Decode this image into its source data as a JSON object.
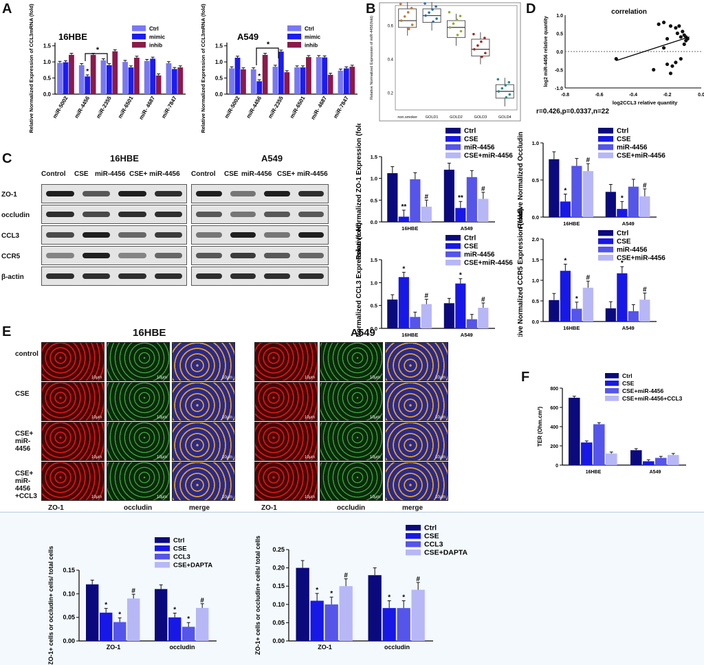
{
  "colors": {
    "ctrl": "#0a0a7d",
    "cse": "#1818e6",
    "mir": "#5555ea",
    "combo": "#b7b7f6",
    "a_ctrl": "#7878f5",
    "a_mimic": "#1c1cf0",
    "a_inhib": "#8a1a4a",
    "ctrl_light": "#7a7af4"
  },
  "panel_letters": {
    "a": "A",
    "b": "B",
    "c": "C",
    "d": "D",
    "e": "E",
    "f": "F"
  },
  "panel_a": {
    "legend": [
      "Ctrl",
      "mimic",
      "inhib"
    ],
    "categories": [
      "miR-5002",
      "miR-4456",
      "miR-2355",
      "miR-6501",
      "miR- 4687",
      "miR-7847"
    ],
    "categories_right": [
      "miR-5002",
      "miR-4456",
      "miR-2355",
      "miR-6501",
      "miR- 4687",
      "miR-7847"
    ],
    "left": {
      "title": "16HBE",
      "ylabel": "Relative Normalized Expression of CCL3mRNA (fold)",
      "yticks": [
        "0.0",
        "0.5",
        "1.0",
        "1.5"
      ],
      "star": "*"
    },
    "right": {
      "title": "A549",
      "ylabel": "Relative Normalized Expression of CCL3mRNA (fold)",
      "yticks": [
        "0.0",
        "0.5",
        "1.0",
        "1.5"
      ],
      "star": "*"
    }
  },
  "panel_b": {
    "ylabel": "Relative Normalized Expression of miR-4456(fold)",
    "categories": [
      "non.smoker",
      "GOLD1",
      "GOLD2",
      "GOLD3",
      "GOLD4"
    ],
    "yticks": [
      "0.2",
      "0.4",
      "0.6"
    ]
  },
  "panel_d": {
    "title": "correlation",
    "ylabel": "log2 miR-4456 relative quantity",
    "xlabel": "log2CCL3 relative quantity",
    "xticks": [
      "-0.8",
      "-0.6",
      "-0.4",
      "-0.2",
      "0.0"
    ],
    "yticks": [
      "1.0",
      "0.5",
      "0.0",
      "-0.5",
      "-1.0"
    ],
    "stats": "r=0.426,p=0.0337,n=22"
  },
  "panel_c": {
    "left_title": "16HBE",
    "right_title": "A549",
    "lanes": [
      "Control",
      "CSE",
      "miR-4456",
      "CSE+ miR-4456"
    ],
    "lanes_right": [
      "Control",
      "CSE",
      "miR-4456",
      "CSE+ miR-4456"
    ],
    "rows": [
      "ZO-1",
      "occludin",
      "CCL3",
      "CCR5",
      "β-actin"
    ]
  },
  "quant_legend": [
    "Ctrl",
    "CSE",
    "miR-4456",
    "CSE+miR-4456"
  ],
  "quant": {
    "zo1": {
      "ylabel": "Relative Normalized ZO-1 Expression (fold)",
      "yticks": [
        "0.0",
        "0.5",
        "1.0",
        "1.5"
      ],
      "groups": [
        "16HBE",
        "A549"
      ]
    },
    "occ": {
      "ylabel": "Relative Normalized Occludin",
      "yticks": [
        "0.0",
        "0.5",
        "1.0"
      ],
      "groups": [
        "16HBE",
        "A549"
      ]
    },
    "ccl3": {
      "ylabel": "Relative Normalized CCL3 Expression (fold)",
      "yticks": [
        "0.0",
        "0.5",
        "1.0",
        "1.5"
      ],
      "groups": [
        "16HBE",
        "A549"
      ]
    },
    "ccr5": {
      "ylabel": "Relative Normalized CCR5 Expression (fold)",
      "yticks": [
        "0.0",
        "0.5",
        "1.0",
        "1.5",
        "2.0"
      ],
      "groups": [
        "16HBE",
        "A549"
      ]
    }
  },
  "panel_e": {
    "left_title": "16HBE",
    "right_title": "A549",
    "rows": [
      "control",
      "CSE",
      "CSE+\nmiR-\n4456",
      "CSE+\nmiR-\n4456\n+CCL3"
    ],
    "cols": [
      "ZO-1",
      "occludin",
      "merge"
    ],
    "scale": "10μm"
  },
  "panel_f": {
    "legend": [
      "Ctrl",
      "CSE",
      "CSE+miR-4456",
      "CSE+miR-4456+CCL3"
    ],
    "ylabel": "TER (Ohm.cm²)",
    "yticks": [
      "0",
      "200",
      "400",
      "600",
      "800"
    ],
    "groups": [
      "16HBE",
      "A549"
    ]
  },
  "bottom_legend": [
    "Ctrl",
    "CSE",
    "CCL3",
    "CSE+DAPTA"
  ],
  "bottom_ylabel": "ZO-1+ cells or occludin+ cells/ total cells",
  "bottom_left": {
    "yticks": [
      "0.00",
      "0.05",
      "0.10",
      "0.15"
    ],
    "groups": [
      "ZO-1",
      "occludin"
    ]
  },
  "bottom_right": {
    "yticks": [
      "0.00",
      "0.05",
      "0.10",
      "0.15",
      "0.20",
      "0.25"
    ],
    "groups": [
      "ZO-1",
      "occludin"
    ]
  },
  "chart_data": [
    {
      "type": "bar",
      "name": "A-16HBE",
      "categories": [
        "miR-5002",
        "miR-4456",
        "miR-2355",
        "miR-6501",
        "miR- 4687",
        "miR-7847"
      ],
      "series": [
        {
          "name": "Ctrl",
          "values": [
            0.97,
            0.9,
            1.05,
            1.0,
            1.03,
            0.96
          ]
        },
        {
          "name": "mimic",
          "values": [
            0.99,
            0.55,
            0.9,
            0.83,
            1.1,
            0.78
          ]
        },
        {
          "name": "inhib",
          "values": [
            1.22,
            1.22,
            1.33,
            1.13,
            0.58,
            0.83
          ]
        }
      ],
      "ylim": [
        0,
        1.6
      ]
    },
    {
      "type": "bar",
      "name": "A-A549",
      "categories": [
        "miR-5002",
        "miR-4456",
        "miR-2355",
        "miR-6501",
        "miR- 4687",
        "miR-7847"
      ],
      "series": [
        {
          "name": "Ctrl",
          "values": [
            0.8,
            0.77,
            0.85,
            0.83,
            1.15,
            0.73
          ]
        },
        {
          "name": "mimic",
          "values": [
            1.13,
            0.4,
            1.32,
            0.83,
            1.14,
            0.8
          ]
        },
        {
          "name": "inhib",
          "values": [
            0.77,
            1.22,
            0.68,
            1.15,
            0.6,
            0.85
          ]
        }
      ],
      "ylim": [
        0,
        1.6
      ]
    },
    {
      "type": "bar",
      "name": "C-ZO-1",
      "categories": [
        "16HBE",
        "A549"
      ],
      "series": [
        {
          "name": "Ctrl",
          "values": [
            1.12,
            1.2
          ]
        },
        {
          "name": "CSE",
          "values": [
            0.12,
            0.32
          ]
        },
        {
          "name": "miR-4456",
          "values": [
            0.98,
            1.03
          ]
        },
        {
          "name": "CSE+miR-4456",
          "values": [
            0.35,
            0.53
          ]
        }
      ],
      "ylim": [
        0,
        1.5
      ]
    },
    {
      "type": "bar",
      "name": "C-Occludin",
      "categories": [
        "16HBE",
        "A549"
      ],
      "series": [
        {
          "name": "Ctrl",
          "values": [
            0.78,
            0.34
          ]
        },
        {
          "name": "CSE",
          "values": [
            0.21,
            0.11
          ]
        },
        {
          "name": "miR-4456",
          "values": [
            0.69,
            0.41
          ]
        },
        {
          "name": "CSE+miR-4456",
          "values": [
            0.62,
            0.28
          ]
        }
      ],
      "ylim": [
        0,
        1.0
      ]
    },
    {
      "type": "bar",
      "name": "C-CCL3",
      "categories": [
        "16HBE",
        "A549"
      ],
      "series": [
        {
          "name": "Ctrl",
          "values": [
            0.63,
            0.55
          ]
        },
        {
          "name": "CSE",
          "values": [
            1.12,
            0.98
          ]
        },
        {
          "name": "miR-4456",
          "values": [
            0.25,
            0.2
          ]
        },
        {
          "name": "CSE+miR-4456",
          "values": [
            0.53,
            0.45
          ]
        }
      ],
      "ylim": [
        0,
        1.5
      ]
    },
    {
      "type": "bar",
      "name": "C-CCR5",
      "categories": [
        "16HBE",
        "A549"
      ],
      "series": [
        {
          "name": "Ctrl",
          "values": [
            0.52,
            0.32
          ]
        },
        {
          "name": "CSE",
          "values": [
            1.23,
            1.17
          ]
        },
        {
          "name": "miR-4456",
          "values": [
            0.31,
            0.25
          ]
        },
        {
          "name": "CSE+miR-4456",
          "values": [
            0.82,
            0.53
          ]
        }
      ],
      "ylim": [
        0,
        2.0
      ]
    },
    {
      "type": "bar",
      "name": "F-TER",
      "categories": [
        "16HBE",
        "A549"
      ],
      "series": [
        {
          "name": "Ctrl",
          "values": [
            700,
            155
          ]
        },
        {
          "name": "CSE",
          "values": [
            235,
            40
          ]
        },
        {
          "name": "CSE+miR-4456",
          "values": [
            425,
            75
          ]
        },
        {
          "name": "CSE+miR-4456+CCL3",
          "values": [
            120,
            105
          ]
        }
      ],
      "ylim": [
        0,
        800
      ]
    },
    {
      "type": "bar",
      "name": "bottom-left",
      "categories": [
        "ZO-1",
        "occludin"
      ],
      "series": [
        {
          "name": "Ctrl",
          "values": [
            0.12,
            0.11
          ]
        },
        {
          "name": "CSE",
          "values": [
            0.06,
            0.05
          ]
        },
        {
          "name": "CCL3",
          "values": [
            0.04,
            0.03
          ]
        },
        {
          "name": "CSE+DAPTA",
          "values": [
            0.09,
            0.07
          ]
        }
      ],
      "ylim": [
        0,
        0.15
      ]
    },
    {
      "type": "bar",
      "name": "bottom-right",
      "categories": [
        "ZO-1",
        "occludin"
      ],
      "series": [
        {
          "name": "Ctrl",
          "values": [
            0.2,
            0.18
          ]
        },
        {
          "name": "CSE",
          "values": [
            0.11,
            0.09
          ]
        },
        {
          "name": "CCL3",
          "values": [
            0.1,
            0.09
          ]
        },
        {
          "name": "CSE+DAPTA",
          "values": [
            0.15,
            0.14
          ]
        }
      ],
      "ylim": [
        0,
        0.25
      ]
    },
    {
      "type": "scatter",
      "name": "D-correlation",
      "x": [
        -0.5,
        -0.28,
        -0.25,
        -0.22,
        -0.2,
        -0.18,
        -0.15,
        -0.13,
        -0.12,
        -0.1,
        -0.09,
        -0.08,
        -0.2,
        -0.18,
        -0.15,
        -0.12,
        -0.1,
        -0.17,
        -0.22,
        -0.14,
        -0.11,
        -0.09
      ],
      "y": [
        -0.2,
        -0.5,
        0.75,
        0.8,
        0.35,
        0.7,
        0.65,
        0.7,
        0.4,
        0.45,
        0.3,
        0.35,
        -0.35,
        -0.6,
        -0.3,
        -0.2,
        0.2,
        -0.4,
        0.1,
        0.5,
        0.55,
        0.4
      ],
      "xlim": [
        -0.8,
        0
      ],
      "ylim": [
        -1,
        1
      ]
    },
    {
      "type": "box",
      "name": "B-boxplot",
      "categories": [
        "non.smoker",
        "GOLD1",
        "GOLD2",
        "GOLD3",
        "GOLD4"
      ],
      "median": [
        0.63,
        0.66,
        0.59,
        0.46,
        0.21
      ],
      "q1": [
        0.59,
        0.62,
        0.53,
        0.42,
        0.17
      ],
      "q3": [
        0.7,
        0.7,
        0.63,
        0.52,
        0.25
      ],
      "ylim": [
        0.1,
        0.72
      ]
    }
  ]
}
